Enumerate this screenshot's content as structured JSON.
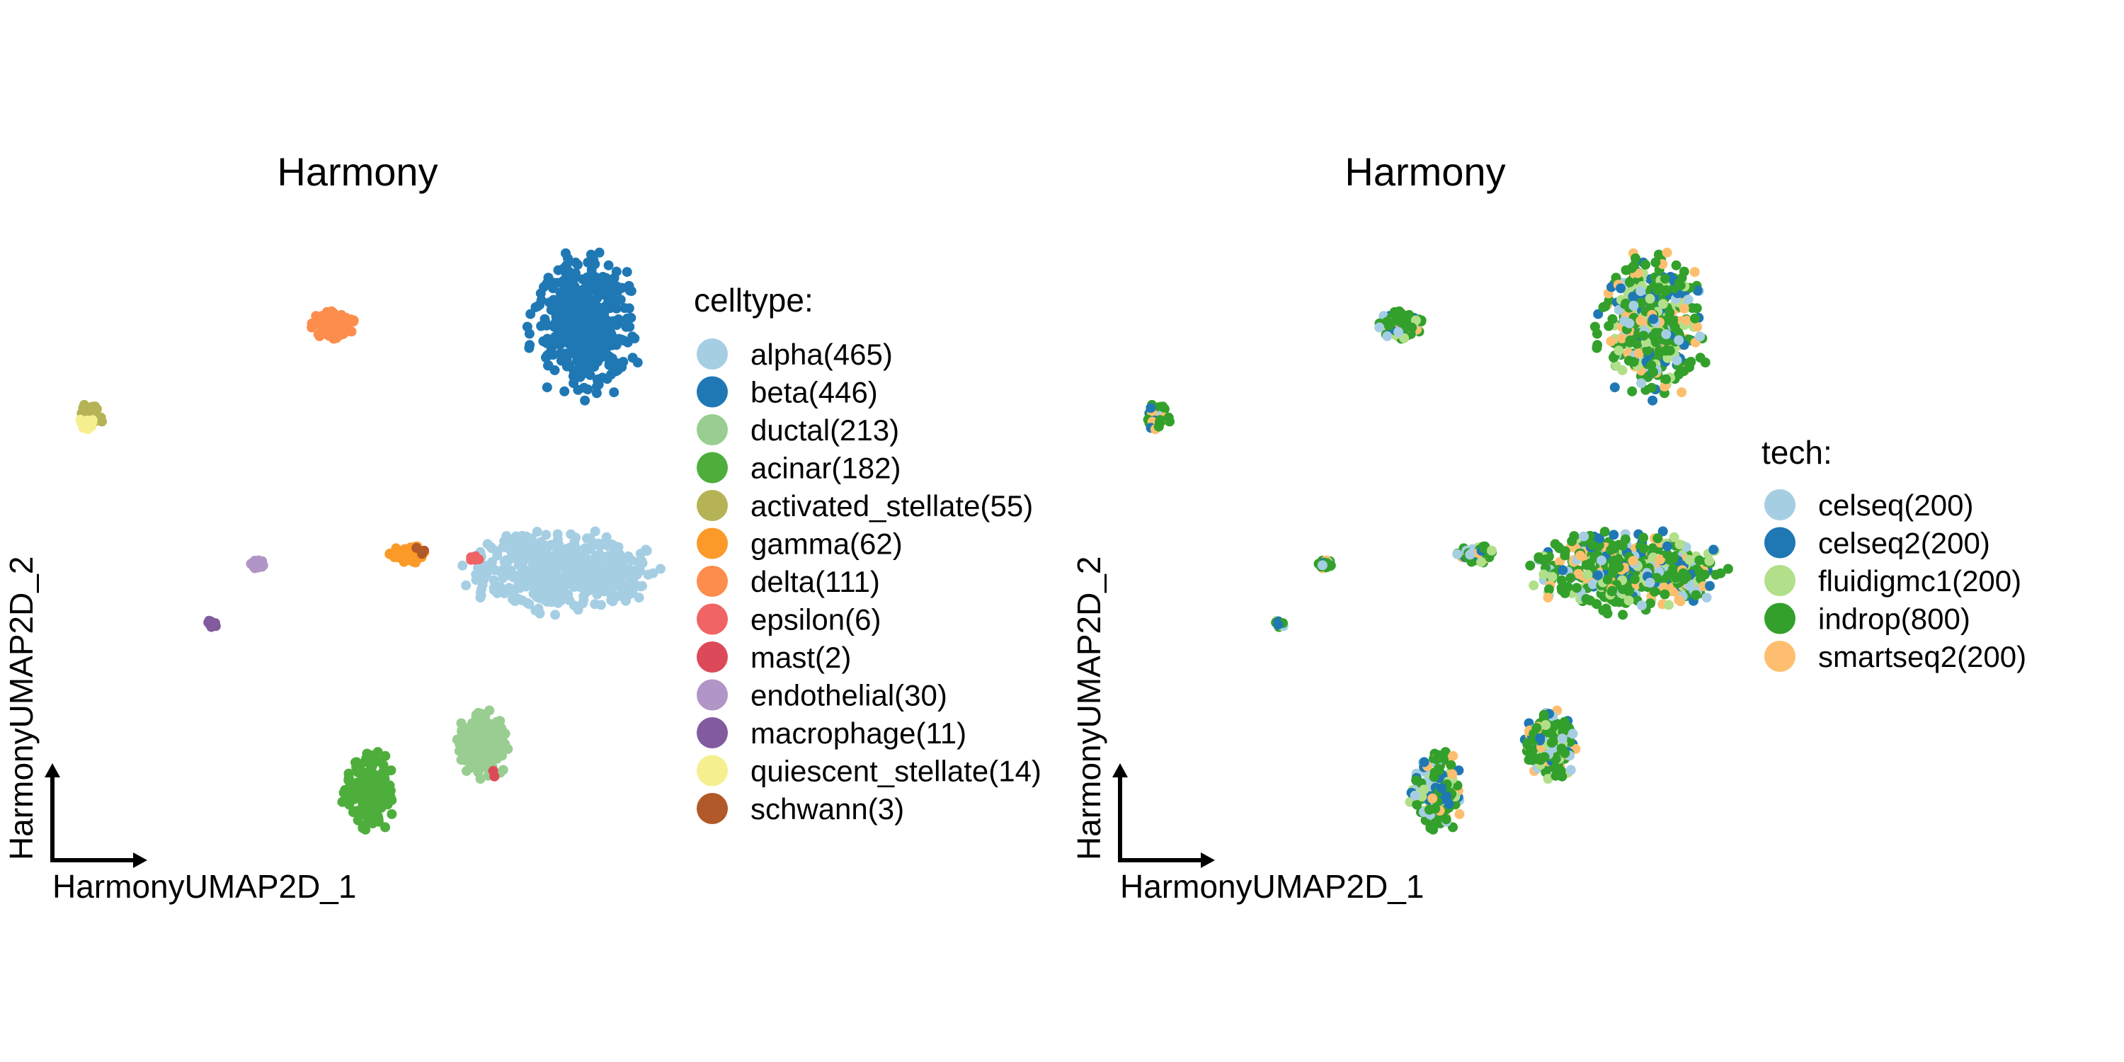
{
  "chart_data": [
    {
      "type": "scatter",
      "title": "Harmony",
      "xlabel": "HarmonyUMAP2D_1",
      "ylabel": "HarmonyUMAP2D_2",
      "legend_title": "celltype:",
      "legend_position": "right",
      "grid": false,
      "series": [
        {
          "name": "alpha(465)",
          "color": "#A6CEE3",
          "count": 465,
          "points": [
            [
              0,
              0
            ]
          ]
        },
        {
          "name": "beta(446)",
          "color": "#1F78B4",
          "count": 446,
          "points": [
            [
              0,
              0
            ]
          ]
        },
        {
          "name": "ductal(213)",
          "color": "#99CD91",
          "count": 213,
          "points": [
            [
              0,
              0
            ]
          ]
        },
        {
          "name": "acinar(182)",
          "color": "#4EAE3C",
          "count": 182,
          "points": [
            [
              0,
              0
            ]
          ]
        },
        {
          "name": "activated_stellate(55)",
          "color": "#B5B356",
          "count": 55,
          "points": [
            [
              0,
              0
            ]
          ]
        },
        {
          "name": "gamma(62)",
          "color": "#FB9A29",
          "count": 62,
          "points": [
            [
              0,
              0
            ]
          ]
        },
        {
          "name": "delta(111)",
          "color": "#FC8D4D",
          "count": 111,
          "points": [
            [
              0,
              0
            ]
          ]
        },
        {
          "name": "epsilon(6)",
          "color": "#F06466",
          "count": 6,
          "points": [
            [
              0,
              0
            ]
          ]
        },
        {
          "name": "mast(2)",
          "color": "#DC4A59",
          "count": 2,
          "points": [
            [
              0,
              0
            ]
          ]
        },
        {
          "name": "endothelial(30)",
          "color": "#B295C7",
          "count": 30,
          "points": [
            [
              0,
              0
            ]
          ]
        },
        {
          "name": "macrophage(11)",
          "color": "#825B9F",
          "count": 11,
          "points": [
            [
              0,
              0
            ]
          ]
        },
        {
          "name": "quiescent_stellate(14)",
          "color": "#F5EF8F",
          "count": 14,
          "points": [
            [
              0,
              0
            ]
          ]
        },
        {
          "name": "schwann(3)",
          "color": "#B15928",
          "count": 3,
          "points": [
            [
              0,
              0
            ]
          ]
        }
      ]
    },
    {
      "type": "scatter",
      "title": "Harmony",
      "xlabel": "HarmonyUMAP2D_1",
      "ylabel": "HarmonyUMAP2D_2",
      "legend_title": "tech:",
      "legend_position": "right",
      "grid": false,
      "series": [
        {
          "name": "celseq(200)",
          "color": "#A6CEE3",
          "count": 200,
          "points": [
            [
              0,
              0
            ]
          ]
        },
        {
          "name": "celseq2(200)",
          "color": "#1F78B4",
          "count": 200,
          "points": [
            [
              0,
              0
            ]
          ]
        },
        {
          "name": "fluidigmc1(200)",
          "color": "#B2DF8A",
          "count": 200,
          "points": [
            [
              0,
              0
            ]
          ]
        },
        {
          "name": "indrop(800)",
          "color": "#33A02C",
          "count": 800,
          "points": [
            [
              0,
              0
            ]
          ]
        },
        {
          "name": "smartseq2(200)",
          "color": "#FDBF6F",
          "count": 200,
          "points": [
            [
              0,
              0
            ]
          ]
        }
      ]
    }
  ]
}
